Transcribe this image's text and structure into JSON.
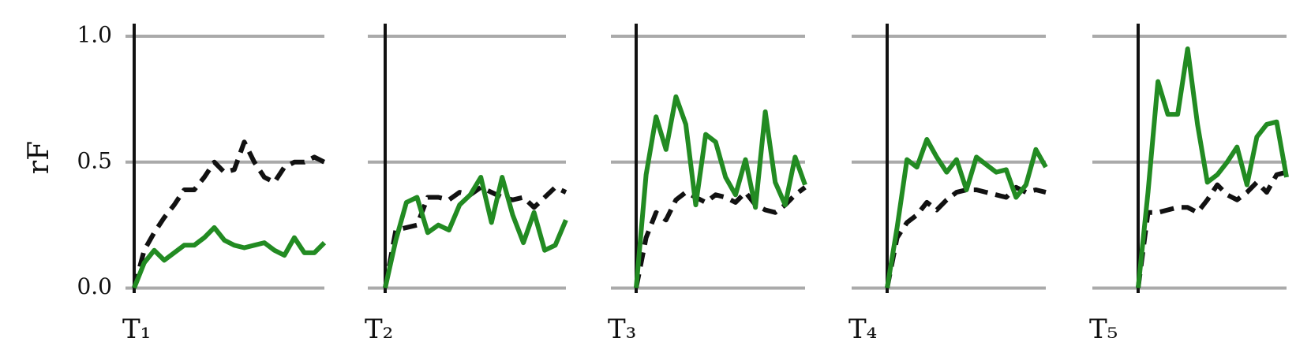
{
  "chart_data": [
    {
      "type": "line",
      "title": "T₁",
      "ylabel": "rF",
      "ylim": [
        -0.02,
        1.05
      ],
      "yticks": [
        {
          "value": 0,
          "label": "0.0"
        },
        {
          "value": 0.5,
          "label": "0.5"
        },
        {
          "value": 1,
          "label": "1.0"
        }
      ],
      "grid": true,
      "series": [
        {
          "color": "#111111",
          "dashed": true,
          "values": [
            0,
            0.15,
            0.22,
            0.28,
            0.33,
            0.39,
            0.39,
            0.44,
            0.5,
            0.46,
            0.47,
            0.58,
            0.5,
            0.44,
            0.42,
            0.48,
            0.5,
            0.5,
            0.52,
            0.5
          ]
        },
        {
          "color": "#228b22",
          "dashed": false,
          "values": [
            0,
            0.1,
            0.15,
            0.11,
            0.14,
            0.17,
            0.17,
            0.2,
            0.24,
            0.19,
            0.17,
            0.16,
            0.17,
            0.18,
            0.15,
            0.13,
            0.2,
            0.14,
            0.14,
            0.18
          ]
        }
      ]
    },
    {
      "type": "line",
      "title": "T₂",
      "ylim": [
        -0.02,
        1.05
      ],
      "series": [
        {
          "color": "#111111",
          "dashed": true,
          "values": [
            0,
            0.23,
            0.24,
            0.25,
            0.36,
            0.36,
            0.35,
            0.38,
            0.37,
            0.4,
            0.38,
            0.36,
            0.35,
            0.36,
            0.32,
            0.36,
            0.4,
            0.38
          ]
        },
        {
          "color": "#228b22",
          "dashed": false,
          "values": [
            0,
            0.19,
            0.34,
            0.36,
            0.22,
            0.25,
            0.23,
            0.33,
            0.37,
            0.44,
            0.26,
            0.44,
            0.29,
            0.18,
            0.3,
            0.15,
            0.17,
            0.27
          ]
        }
      ]
    },
    {
      "type": "line",
      "title": "T₃",
      "ylim": [
        -0.02,
        1.05
      ],
      "series": [
        {
          "color": "#111111",
          "dashed": true,
          "values": [
            0,
            0.2,
            0.3,
            0.27,
            0.35,
            0.38,
            0.36,
            0.34,
            0.37,
            0.36,
            0.34,
            0.38,
            0.33,
            0.31,
            0.3,
            0.33,
            0.37,
            0.4
          ]
        },
        {
          "color": "#228b22",
          "dashed": false,
          "values": [
            0,
            0.45,
            0.68,
            0.55,
            0.76,
            0.65,
            0.33,
            0.61,
            0.58,
            0.44,
            0.37,
            0.51,
            0.32,
            0.7,
            0.42,
            0.33,
            0.52,
            0.41
          ]
        }
      ]
    },
    {
      "type": "line",
      "title": "T₄",
      "ylim": [
        -0.02,
        1.05
      ],
      "series": [
        {
          "color": "#111111",
          "dashed": true,
          "values": [
            0,
            0.2,
            0.26,
            0.29,
            0.34,
            0.31,
            0.35,
            0.38,
            0.39,
            0.39,
            0.38,
            0.37,
            0.36,
            0.4,
            0.38,
            0.39,
            0.38
          ]
        },
        {
          "color": "#228b22",
          "dashed": false,
          "values": [
            0,
            0.24,
            0.51,
            0.48,
            0.59,
            0.52,
            0.46,
            0.51,
            0.39,
            0.52,
            0.49,
            0.46,
            0.47,
            0.36,
            0.41,
            0.55,
            0.48
          ]
        }
      ]
    },
    {
      "type": "line",
      "title": "T₅",
      "ylim": [
        -0.02,
        1.05
      ],
      "series": [
        {
          "color": "#111111",
          "dashed": true,
          "values": [
            0,
            0.3,
            0.3,
            0.31,
            0.32,
            0.32,
            0.3,
            0.35,
            0.41,
            0.37,
            0.35,
            0.38,
            0.42,
            0.38,
            0.45,
            0.46
          ]
        },
        {
          "color": "#228b22",
          "dashed": false,
          "values": [
            0,
            0.38,
            0.82,
            0.69,
            0.69,
            0.95,
            0.65,
            0.42,
            0.45,
            0.5,
            0.56,
            0.41,
            0.6,
            0.65,
            0.66,
            0.44
          ]
        }
      ]
    }
  ]
}
